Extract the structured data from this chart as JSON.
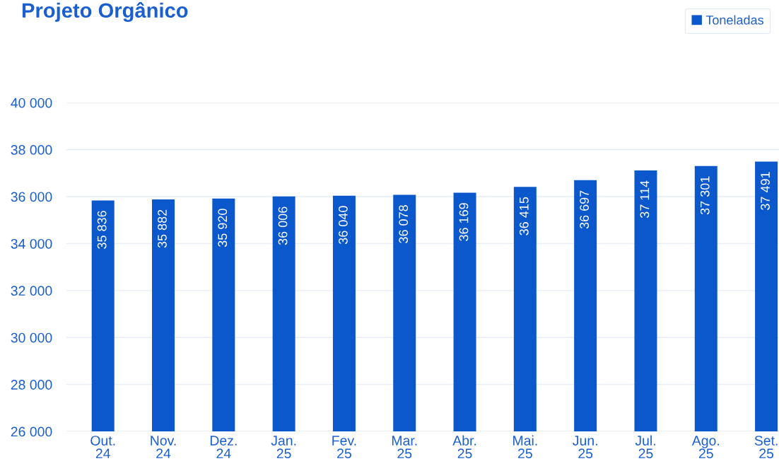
{
  "chart_data": {
    "type": "bar",
    "title": "Projeto Orgânico",
    "categories": [
      "Out.\n24",
      "Nov.\n24",
      "Dez.\n24",
      "Jan.\n25",
      "Fev.\n25",
      "Mar.\n25",
      "Abr.\n25",
      "Mai.\n25",
      "Jun.\n25",
      "Jul.\n25",
      "Ago.\n25",
      "Set.\n25"
    ],
    "series": [
      {
        "name": "Toneladas",
        "color": "#0b57cc",
        "values": [
          35836,
          35882,
          35920,
          36006,
          36040,
          36078,
          36169,
          36415,
          36697,
          37114,
          37301,
          37491
        ],
        "value_labels": [
          "35 836",
          "35 882",
          "35 920",
          "36 006",
          "36 040",
          "36 078",
          "36 169",
          "36 415",
          "36 697",
          "37 114",
          "37 301",
          "37 491"
        ]
      }
    ],
    "ylim": [
      26000,
      40000
    ],
    "yticks": [
      {
        "value": 26000,
        "label": "26 000"
      },
      {
        "value": 28000,
        "label": "28 000"
      },
      {
        "value": 30000,
        "label": "30 000"
      },
      {
        "value": 32000,
        "label": "32 000"
      },
      {
        "value": 34000,
        "label": "34 000"
      },
      {
        "value": 36000,
        "label": "36 000"
      },
      {
        "value": 38000,
        "label": "38 000"
      },
      {
        "value": 40000,
        "label": "40 000"
      }
    ],
    "grid": "y",
    "legend": "top right"
  }
}
